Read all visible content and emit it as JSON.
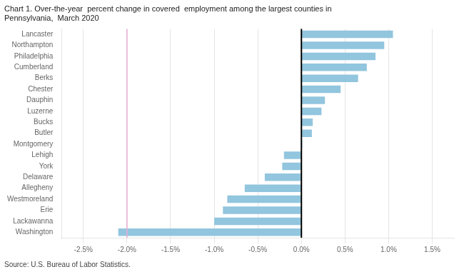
{
  "chart_data": {
    "type": "bar",
    "orientation": "horizontal",
    "title": [
      "Chart 1. Over-the-year  percent change in covered  employment among the largest counties in",
      "Pennsylvania,  March 2020"
    ],
    "annotations": [
      "Source: U.S. Bureau of Labor Statistics."
    ],
    "categories": [
      "Lancaster",
      "Northampton",
      "Philadelphia",
      "Cumberland",
      "Berks",
      "Chester",
      "Dauphin",
      "Luzerne",
      "Bucks",
      "Butler",
      "Montgomery",
      "Lehigh",
      "York",
      "Delaware",
      "Allegheny",
      "Westmoreland",
      "Erie",
      "Lackawanna",
      "Washington"
    ],
    "values": [
      1.05,
      0.95,
      0.85,
      0.75,
      0.65,
      0.45,
      0.27,
      0.23,
      0.13,
      0.12,
      0.01,
      -0.2,
      -0.22,
      -0.42,
      -0.65,
      -0.85,
      -0.9,
      -1.0,
      -2.1
    ],
    "color": "#92c5de",
    "xlim": [
      -2.75,
      1.75
    ],
    "xticks": [
      {
        "value": -2.5,
        "label": "-2.5%"
      },
      {
        "value": -2.0,
        "label": "-2.0%"
      },
      {
        "value": -1.5,
        "label": "-1.5%"
      },
      {
        "value": -1.0,
        "label": "-1.0%"
      },
      {
        "value": -0.5,
        "label": "-0.5%"
      },
      {
        "value": 0.0,
        "label": "0.0%"
      },
      {
        "value": 0.5,
        "label": "0.5%"
      },
      {
        "value": 1.0,
        "label": "1.0%"
      },
      {
        "value": 1.5,
        "label": "1.5%"
      }
    ],
    "reference_lines": [
      {
        "value": -2.0,
        "color": "#e8acd4"
      },
      {
        "value": 0.0,
        "color": "#000000"
      }
    ],
    "grid": true
  }
}
